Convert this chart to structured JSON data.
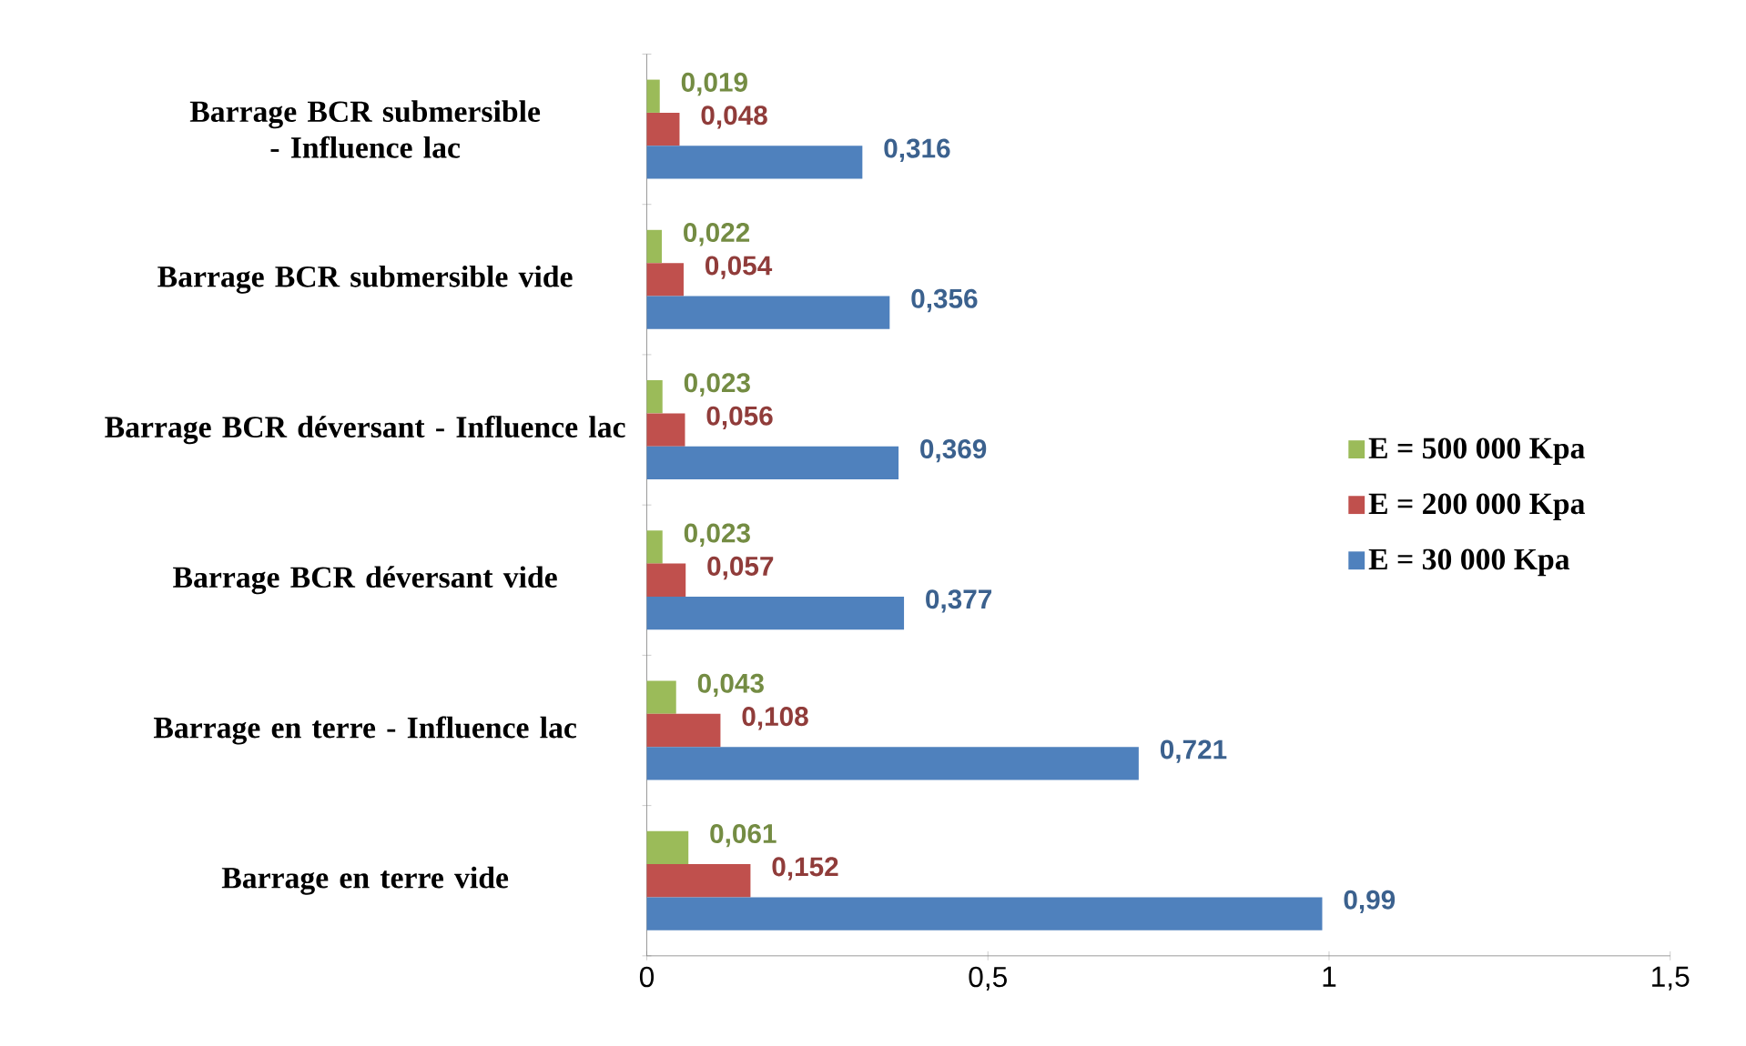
{
  "chart_data": {
    "type": "bar",
    "orientation": "horizontal",
    "categories": [
      "Barrage BCR submersible - Influence lac",
      "Barrage BCR submersible vide",
      "Barrage BCR déversant  - Influence lac",
      "Barrage BCR déversant vide",
      "Barrage en terre - Influence lac",
      "Barrage en terre vide"
    ],
    "series": [
      {
        "name": "E = 30 000 Kpa",
        "color": "#4f81bd",
        "values": [
          0.316,
          0.356,
          0.369,
          0.377,
          0.721,
          0.99
        ],
        "value_labels": [
          "0,316",
          "0,356",
          "0,369",
          "0,377",
          "0,721",
          "0,99"
        ]
      },
      {
        "name": "E = 200 000 Kpa",
        "color": "#c0504d",
        "values": [
          0.048,
          0.054,
          0.056,
          0.057,
          0.108,
          0.152
        ],
        "value_labels": [
          "0,048",
          "0,054",
          "0,056",
          "0,057",
          "0,108",
          "0,152"
        ]
      },
      {
        "name": "E = 500 000 Kpa",
        "color": "#9bbb59",
        "values": [
          0.019,
          0.022,
          0.023,
          0.023,
          0.043,
          0.061
        ],
        "value_labels": [
          "0,019",
          "0,022",
          "0,023",
          "0,023",
          "0,043",
          "0,061"
        ]
      }
    ],
    "xlim": [
      0,
      1.5
    ],
    "xticks": [
      {
        "value": 0,
        "label": "0"
      },
      {
        "value": 0.5,
        "label": "0,5"
      },
      {
        "value": 1,
        "label": "1"
      },
      {
        "value": 1.5,
        "label": "1,5"
      }
    ],
    "grid": false,
    "legend": "right"
  }
}
